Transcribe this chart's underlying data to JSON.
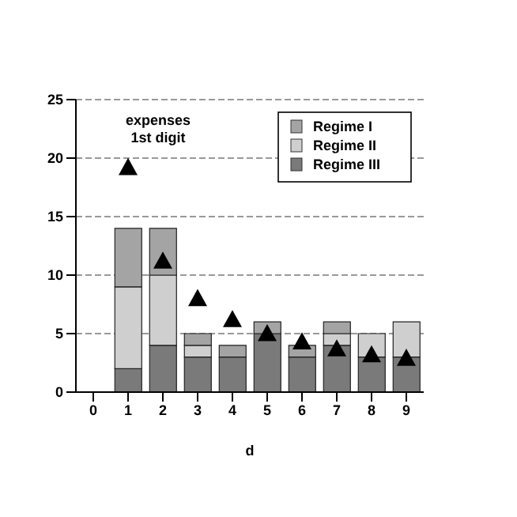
{
  "chart_data": {
    "type": "bar",
    "stacked": true,
    "xlabel": "d",
    "categories": [
      "0",
      "1",
      "2",
      "3",
      "4",
      "5",
      "6",
      "7",
      "8",
      "9"
    ],
    "series": [
      {
        "name": "Regime III",
        "color": "#7a7a7a",
        "values": [
          null,
          2,
          4,
          3,
          3,
          5,
          3,
          4,
          3,
          3
        ]
      },
      {
        "name": "Regime II",
        "color": "#cfcfcf",
        "values": [
          null,
          7,
          6,
          1,
          0,
          0,
          0,
          1,
          2,
          3
        ]
      },
      {
        "name": "Regime I",
        "color": "#a4a4a4",
        "values": [
          null,
          5,
          4,
          1,
          1,
          1,
          1,
          1,
          0,
          0
        ]
      },
      {
        "type": "scatter",
        "marker": "triangle",
        "color": "#000000",
        "x": [
          "1",
          "2",
          "3",
          "4",
          "5",
          "6",
          "7",
          "8",
          "9"
        ],
        "values": [
          19.2,
          11.2,
          8.0,
          6.2,
          5.0,
          4.3,
          3.7,
          3.2,
          2.9
        ]
      }
    ],
    "ylim": [
      0,
      25
    ],
    "yticks": [
      0,
      5,
      10,
      15,
      20,
      25
    ],
    "grid": "y",
    "legend": "top right",
    "annotations": [
      "expenses\n1st digit"
    ]
  }
}
